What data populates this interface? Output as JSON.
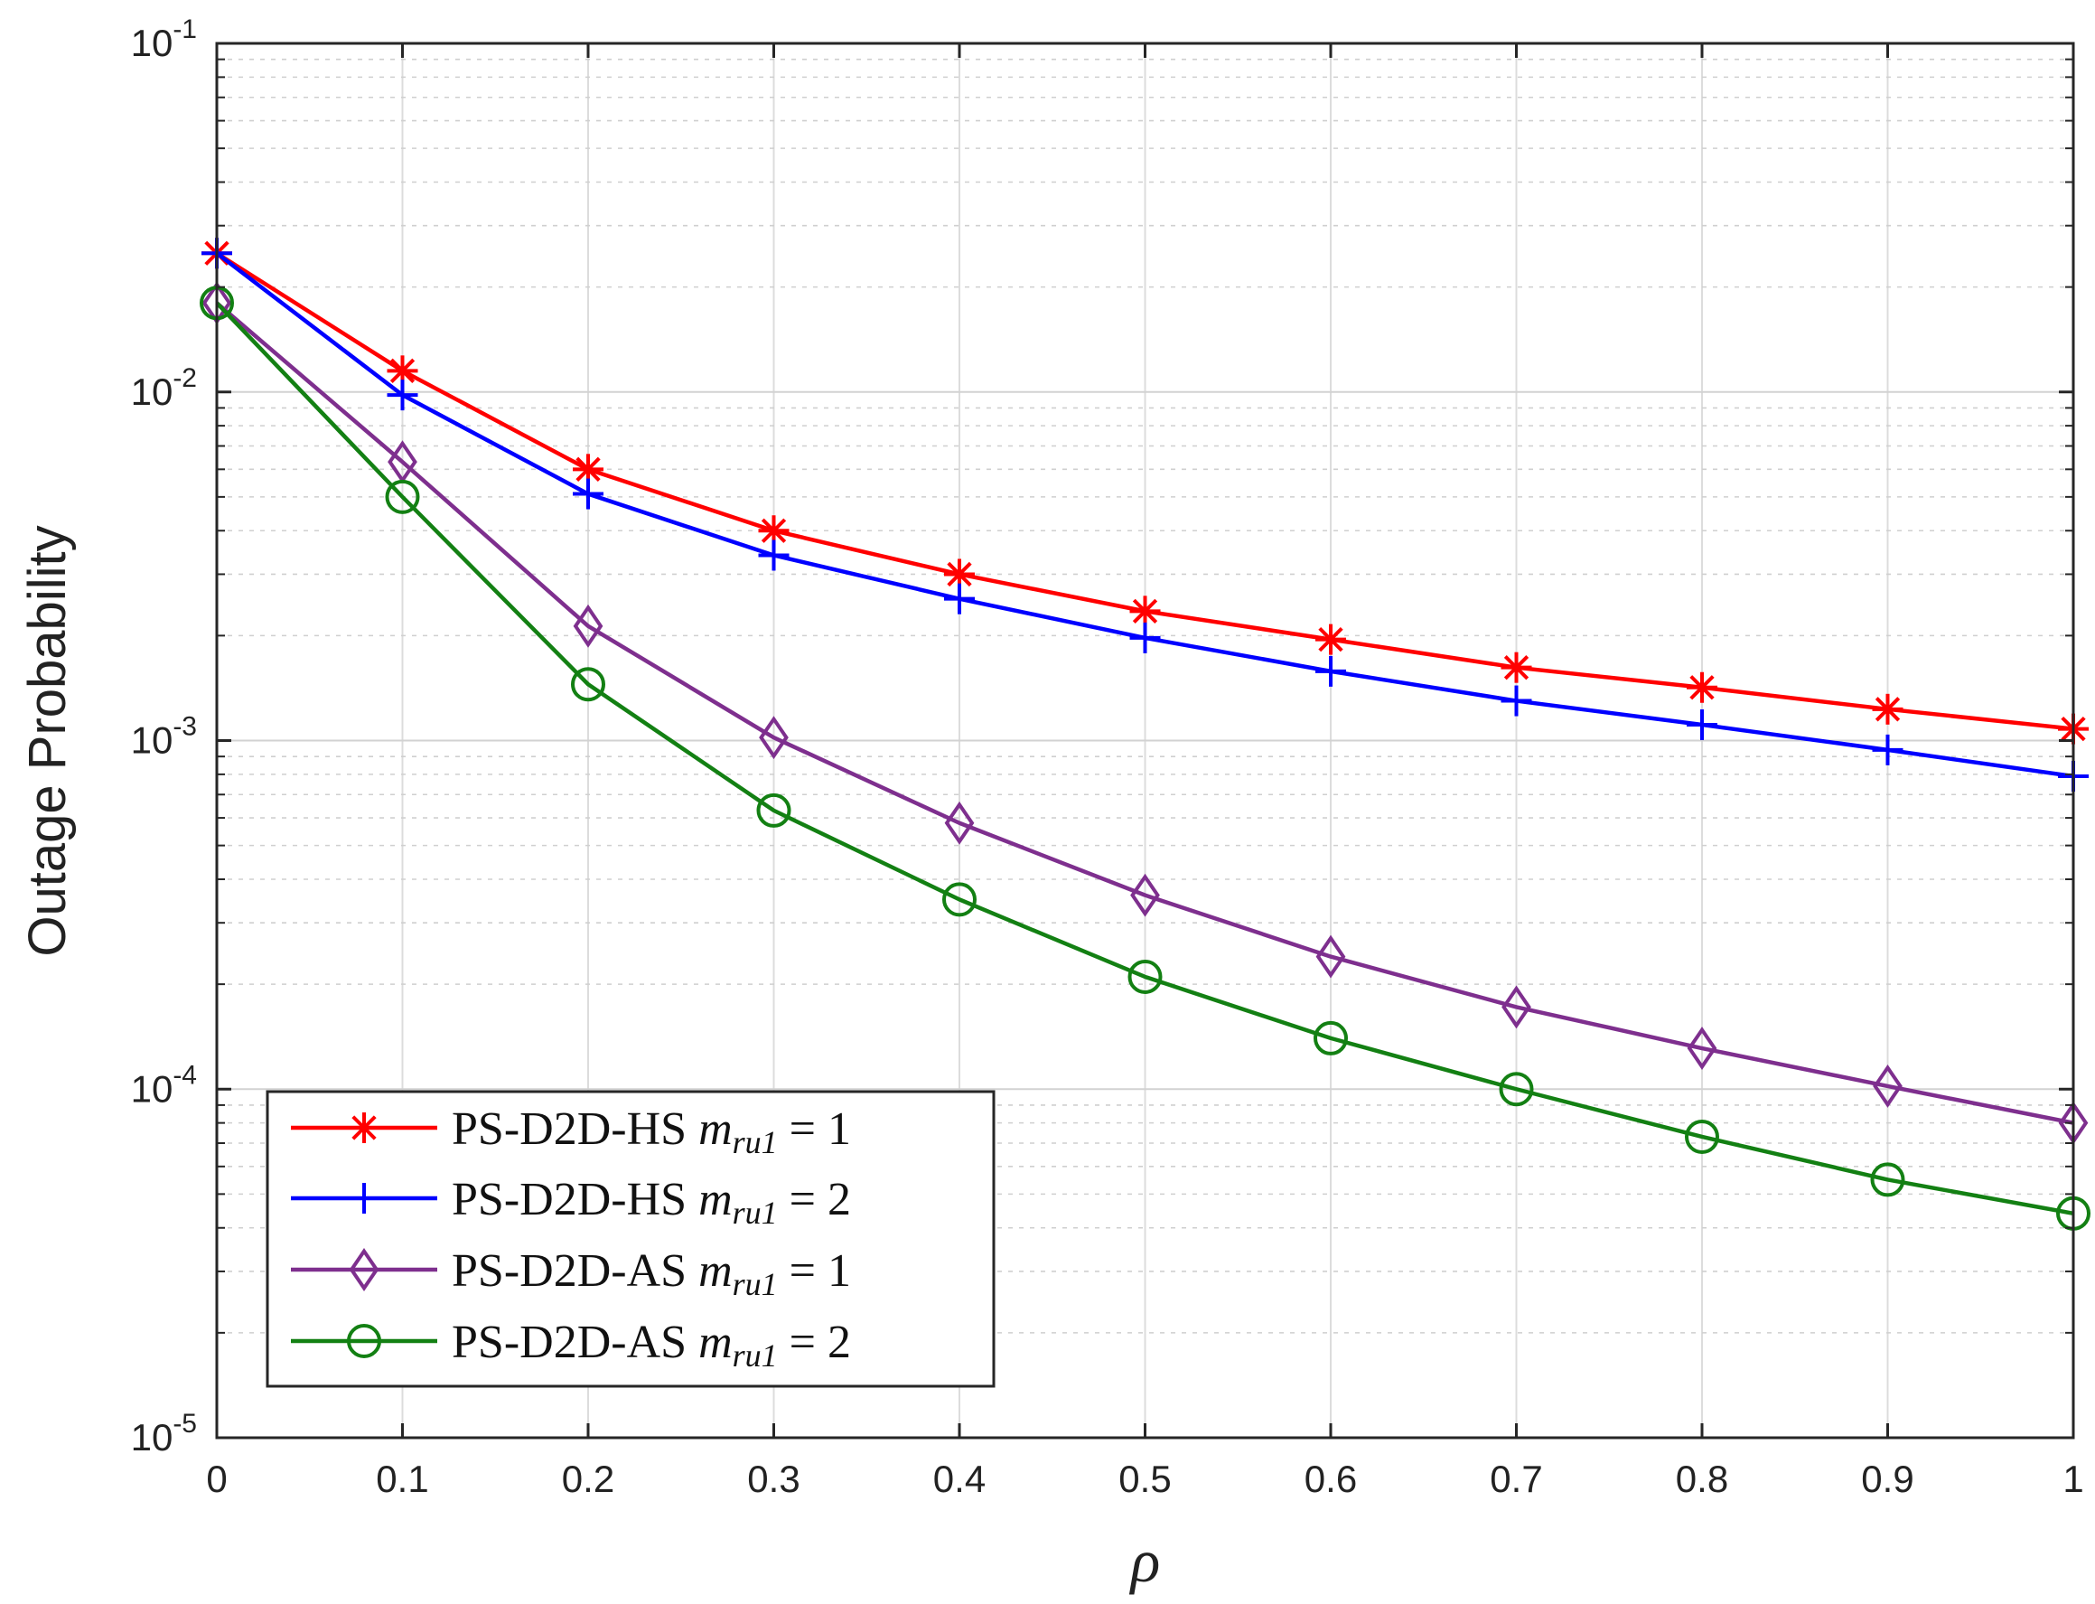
{
  "chart_data": {
    "type": "line",
    "title": "",
    "xlabel": "ρ",
    "ylabel": "Outage Probability",
    "x": [
      0,
      0.1,
      0.2,
      0.3,
      0.4,
      0.5,
      0.6,
      0.7,
      0.8,
      0.9,
      1
    ],
    "xlim": [
      0,
      1
    ],
    "ylim": [
      1e-05,
      0.1
    ],
    "yscale": "log",
    "grid": true,
    "legend_position": "bottom-left",
    "x_tick_labels": [
      "0",
      "0.1",
      "0.2",
      "0.3",
      "0.4",
      "0.5",
      "0.6",
      "0.7",
      "0.8",
      "0.9",
      "1"
    ],
    "y_ticks": [
      {
        "base": "10",
        "exp": "-5"
      },
      {
        "base": "10",
        "exp": "-4"
      },
      {
        "base": "10",
        "exp": "-3"
      },
      {
        "base": "10",
        "exp": "-2"
      },
      {
        "base": "10",
        "exp": "-1"
      }
    ],
    "series": [
      {
        "name": "PS-D2D-HS m_ru1 = 1",
        "legend_prefix": "PS-D2D-HS",
        "legend_var": "m",
        "legend_sub": "ru1",
        "legend_suffix": "= 1",
        "color": "#ff0000",
        "marker": "asterisk",
        "values": [
          0.025,
          0.0115,
          0.006,
          0.004,
          0.003,
          0.00235,
          0.00195,
          0.00162,
          0.00142,
          0.00123,
          0.00108
        ]
      },
      {
        "name": "PS-D2D-HS m_ru1 = 2",
        "legend_prefix": "PS-D2D-HS",
        "legend_var": "m",
        "legend_sub": "ru1",
        "legend_suffix": "= 2",
        "color": "#0000ff",
        "marker": "plus",
        "values": [
          0.025,
          0.0098,
          0.0051,
          0.0034,
          0.00255,
          0.00197,
          0.00158,
          0.0013,
          0.00111,
          0.00094,
          0.00079
        ]
      },
      {
        "name": "PS-D2D-AS m_ru1 = 1",
        "legend_prefix": "PS-D2D-AS",
        "legend_var": "m",
        "legend_sub": "ru1",
        "legend_suffix": "= 1",
        "color": "#7e2f8e",
        "marker": "diamond",
        "values": [
          0.018,
          0.0063,
          0.00213,
          0.00102,
          0.00058,
          0.00036,
          0.00024,
          0.000172,
          0.000131,
          0.000102,
          8e-05
        ]
      },
      {
        "name": "PS-D2D-AS m_ru1 = 2",
        "legend_prefix": "PS-D2D-AS",
        "legend_var": "m",
        "legend_sub": "ru1",
        "legend_suffix": "= 2",
        "color": "#138013",
        "marker": "circle",
        "values": [
          0.018,
          0.005,
          0.00145,
          0.00063,
          0.00035,
          0.00021,
          0.00014,
          0.0001,
          7.3e-05,
          5.5e-05,
          4.4e-05
        ]
      }
    ]
  }
}
